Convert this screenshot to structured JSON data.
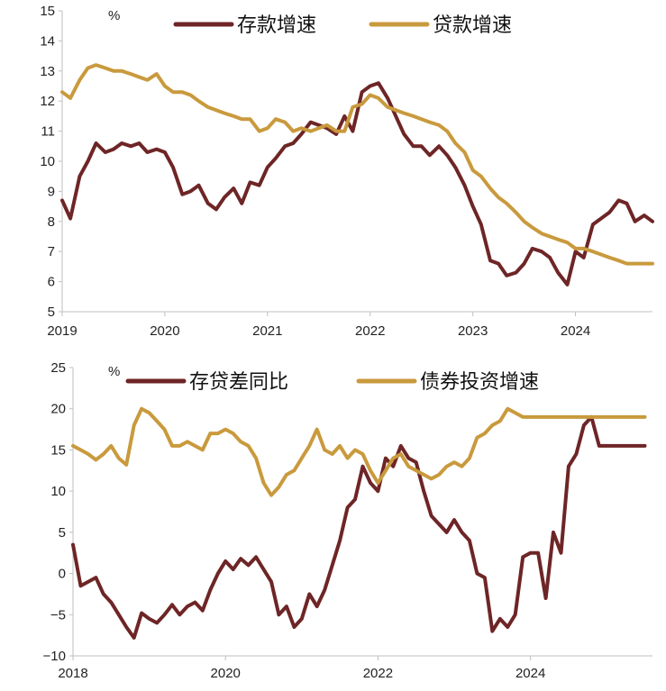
{
  "colors": {
    "dark": "#6e2526",
    "gold": "#c99a3d"
  },
  "chart_data": [
    {
      "type": "line",
      "unit": "%",
      "xlim": [
        2019,
        2024.75
      ],
      "ylim": [
        5,
        15
      ],
      "yticks": [
        "5",
        "6",
        "7",
        "8",
        "9",
        "10",
        "11",
        "12",
        "13",
        "14",
        "15"
      ],
      "xticks": [
        "2019",
        "2020",
        "2021",
        "2022",
        "2023",
        "2024"
      ],
      "series": [
        {
          "name": "存款增速",
          "color": "#6e2526",
          "x": [
            2019.0,
            2019.08,
            2019.17,
            2019.25,
            2019.33,
            2019.42,
            2019.5,
            2019.58,
            2019.67,
            2019.75,
            2019.83,
            2019.92,
            2020.0,
            2020.08,
            2020.17,
            2020.25,
            2020.33,
            2020.42,
            2020.5,
            2020.58,
            2020.67,
            2020.75,
            2020.83,
            2020.92,
            2021.0,
            2021.08,
            2021.17,
            2021.25,
            2021.33,
            2021.42,
            2021.5,
            2021.58,
            2021.67,
            2021.75,
            2021.83,
            2021.92,
            2022.0,
            2022.08,
            2022.17,
            2022.25,
            2022.33,
            2022.42,
            2022.5,
            2022.58,
            2022.67,
            2022.75,
            2022.83,
            2022.92,
            2023.0,
            2023.08,
            2023.17,
            2023.25,
            2023.33,
            2023.42,
            2023.5,
            2023.58,
            2023.67,
            2023.75,
            2023.83,
            2023.92,
            2024.0,
            2024.08,
            2024.17,
            2024.25,
            2024.33,
            2024.42,
            2024.5,
            2024.58,
            2024.67,
            2024.75
          ],
          "values": [
            8.7,
            8.1,
            9.5,
            10.0,
            10.6,
            10.3,
            10.4,
            10.6,
            10.5,
            10.6,
            10.3,
            10.4,
            10.3,
            9.8,
            8.9,
            9.0,
            9.2,
            8.6,
            8.4,
            8.8,
            9.1,
            8.6,
            9.3,
            9.2,
            9.8,
            10.1,
            10.5,
            10.6,
            10.9,
            11.3,
            11.2,
            11.1,
            10.9,
            11.5,
            11.0,
            12.3,
            12.5,
            12.6,
            12.1,
            11.5,
            10.9,
            10.5,
            10.5,
            10.2,
            10.5,
            10.2,
            9.8,
            9.2,
            8.5,
            7.9,
            6.7,
            6.6,
            6.2,
            6.3,
            6.6,
            7.1,
            7.0,
            6.8,
            6.3,
            5.9,
            7.0,
            6.8,
            7.9,
            8.1,
            8.3,
            8.7,
            8.6,
            8.0,
            8.2,
            8.0
          ]
        },
        {
          "name": "贷款增速",
          "color": "#c99a3d",
          "x": [
            2019.0,
            2019.08,
            2019.17,
            2019.25,
            2019.33,
            2019.42,
            2019.5,
            2019.58,
            2019.67,
            2019.75,
            2019.83,
            2019.92,
            2020.0,
            2020.08,
            2020.17,
            2020.25,
            2020.33,
            2020.42,
            2020.5,
            2020.58,
            2020.67,
            2020.75,
            2020.83,
            2020.92,
            2021.0,
            2021.08,
            2021.17,
            2021.25,
            2021.33,
            2021.42,
            2021.5,
            2021.58,
            2021.67,
            2021.75,
            2021.83,
            2021.92,
            2022.0,
            2022.08,
            2022.17,
            2022.25,
            2022.33,
            2022.42,
            2022.5,
            2022.58,
            2022.67,
            2022.75,
            2022.83,
            2022.92,
            2023.0,
            2023.08,
            2023.17,
            2023.25,
            2023.33,
            2023.42,
            2023.5,
            2023.58,
            2023.67,
            2023.75,
            2023.83,
            2023.92,
            2024.0,
            2024.08,
            2024.17,
            2024.25,
            2024.33,
            2024.42,
            2024.5,
            2024.58,
            2024.67,
            2024.75
          ],
          "values": [
            12.3,
            12.1,
            12.7,
            13.1,
            13.2,
            13.1,
            13.0,
            13.0,
            12.9,
            12.8,
            12.7,
            12.9,
            12.5,
            12.3,
            12.3,
            12.2,
            12.0,
            11.8,
            11.7,
            11.6,
            11.5,
            11.4,
            11.4,
            11.0,
            11.1,
            11.4,
            11.3,
            11.0,
            11.1,
            11.0,
            11.1,
            11.2,
            11.0,
            11.0,
            11.8,
            11.9,
            12.2,
            12.1,
            11.8,
            11.7,
            11.6,
            11.5,
            11.4,
            11.3,
            11.2,
            11.0,
            10.6,
            10.3,
            9.7,
            9.5,
            9.1,
            8.8,
            8.6,
            8.3,
            8.0,
            7.8,
            7.6,
            7.5,
            7.4,
            7.3,
            7.1,
            7.1,
            7.0,
            6.9,
            6.8,
            6.7,
            6.6,
            6.6,
            6.6,
            6.6
          ]
        }
      ]
    },
    {
      "type": "line",
      "unit": "%",
      "xlim": [
        2018,
        2025.6
      ],
      "ylim": [
        -10,
        25
      ],
      "yticks": [
        "−10",
        "−5",
        "0",
        "5",
        "10",
        "15",
        "20",
        "25"
      ],
      "xticks": [
        "2018",
        "2020",
        "2022",
        "2024"
      ],
      "series": [
        {
          "name": "存贷差同比",
          "color": "#6e2526",
          "x": [
            2018.0,
            2018.1,
            2018.2,
            2018.3,
            2018.4,
            2018.5,
            2018.6,
            2018.7,
            2018.8,
            2018.9,
            2019.0,
            2019.1,
            2019.2,
            2019.3,
            2019.4,
            2019.5,
            2019.6,
            2019.7,
            2019.8,
            2019.9,
            2020.0,
            2020.1,
            2020.2,
            2020.3,
            2020.4,
            2020.5,
            2020.6,
            2020.7,
            2020.8,
            2020.9,
            2021.0,
            2021.1,
            2021.2,
            2021.3,
            2021.4,
            2021.5,
            2021.6,
            2021.7,
            2021.8,
            2021.9,
            2022.0,
            2022.1,
            2022.2,
            2022.3,
            2022.4,
            2022.5,
            2022.6,
            2022.7,
            2022.8,
            2022.9,
            2023.0,
            2023.1,
            2023.2,
            2023.3,
            2023.4,
            2023.5,
            2023.6,
            2023.7,
            2023.8,
            2023.9,
            2024.0,
            2024.1,
            2024.2,
            2024.3,
            2024.4,
            2024.5,
            2024.6,
            2024.7,
            2024.8,
            2024.9,
            2025.0,
            2025.1,
            2025.2,
            2025.3,
            2025.4,
            2025.5
          ],
          "values": [
            3.5,
            -1.5,
            -1.0,
            -0.5,
            -2.5,
            -3.5,
            -5.0,
            -6.5,
            -7.8,
            -4.8,
            -5.5,
            -6.0,
            -5.0,
            -3.8,
            -5.0,
            -4.0,
            -3.5,
            -4.5,
            -2.0,
            0.0,
            1.5,
            0.5,
            1.8,
            1.0,
            2.0,
            0.5,
            -1.0,
            -5.0,
            -4.0,
            -6.5,
            -5.5,
            -2.5,
            -4.0,
            -2.0,
            1.0,
            4.0,
            8.0,
            9.0,
            13.0,
            11.0,
            10.0,
            14.0,
            13.0,
            15.5,
            14.0,
            13.5,
            10.0,
            7.0,
            6.0,
            5.0,
            6.5,
            5.0,
            4.0,
            0.0,
            -0.5,
            -7.0,
            -5.5,
            -6.5,
            -5.0,
            2.0,
            2.5,
            2.5,
            -3.0,
            5.0,
            2.5,
            13.0,
            14.5,
            18.0,
            19.0,
            15.5,
            15.5,
            15.5,
            15.5,
            15.5,
            15.5,
            15.5
          ]
        },
        {
          "name": "债券投资增速",
          "color": "#c99a3d",
          "x": [
            2018.0,
            2018.1,
            2018.2,
            2018.3,
            2018.4,
            2018.5,
            2018.6,
            2018.7,
            2018.8,
            2018.9,
            2019.0,
            2019.1,
            2019.2,
            2019.3,
            2019.4,
            2019.5,
            2019.6,
            2019.7,
            2019.8,
            2019.9,
            2020.0,
            2020.1,
            2020.2,
            2020.3,
            2020.4,
            2020.5,
            2020.6,
            2020.7,
            2020.8,
            2020.9,
            2021.0,
            2021.1,
            2021.2,
            2021.3,
            2021.4,
            2021.5,
            2021.6,
            2021.7,
            2021.8,
            2021.9,
            2022.0,
            2022.1,
            2022.2,
            2022.3,
            2022.4,
            2022.5,
            2022.6,
            2022.7,
            2022.8,
            2022.9,
            2023.0,
            2023.1,
            2023.2,
            2023.3,
            2023.4,
            2023.5,
            2023.6,
            2023.7,
            2023.8,
            2023.9,
            2024.0,
            2024.1,
            2024.2,
            2024.3,
            2024.4,
            2024.5,
            2024.6,
            2024.7,
            2024.8,
            2024.9,
            2025.0,
            2025.1,
            2025.2,
            2025.3,
            2025.4,
            2025.5
          ],
          "values": [
            15.5,
            15.0,
            14.5,
            13.8,
            14.5,
            15.5,
            14.0,
            13.2,
            18.0,
            20.0,
            19.5,
            18.5,
            17.5,
            15.5,
            15.5,
            16.0,
            15.5,
            15.0,
            17.0,
            17.0,
            17.5,
            17.0,
            16.0,
            15.5,
            14.0,
            11.0,
            9.5,
            10.5,
            12.0,
            12.5,
            14.0,
            15.5,
            17.5,
            15.0,
            14.5,
            15.5,
            14.0,
            15.0,
            14.5,
            12.5,
            11.0,
            12.5,
            14.0,
            14.5,
            13.0,
            12.5,
            12.0,
            11.5,
            12.0,
            13.0,
            13.5,
            13.0,
            14.0,
            16.5,
            17.0,
            18.0,
            18.5,
            20.0,
            19.5,
            19.0,
            19.0,
            19.0,
            19.0,
            19.0,
            19.0,
            19.0,
            19.0,
            19.0,
            19.0,
            19.0,
            19.0,
            19.0,
            19.0,
            19.0,
            19.0,
            19.0
          ]
        }
      ]
    }
  ]
}
